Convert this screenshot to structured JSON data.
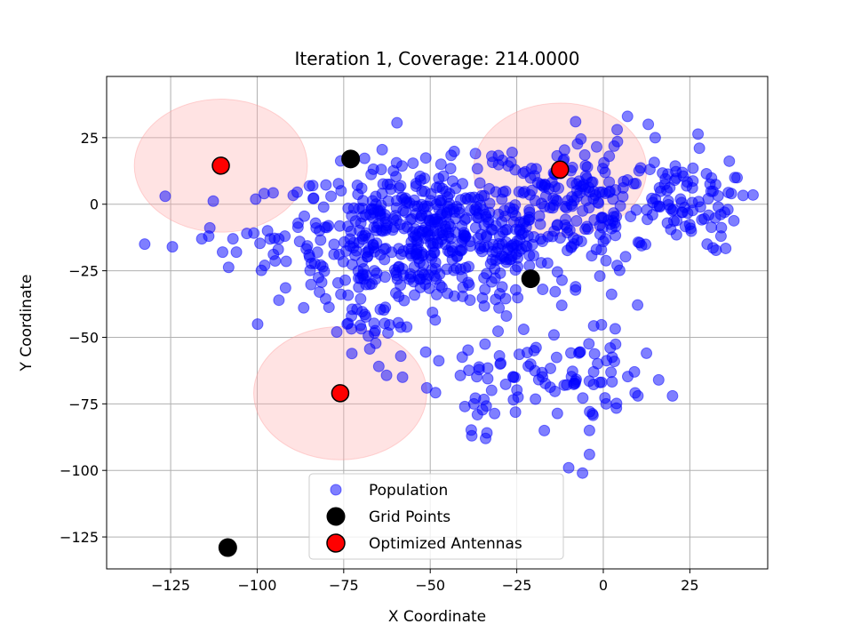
{
  "chart_data": {
    "type": "scatter",
    "title": "Iteration 1, Coverage: 214.0000",
    "xlabel": "X Coordinate",
    "ylabel": "Y Coordinate",
    "xlim": [
      -143.5,
      47.5
    ],
    "ylim": [
      -137,
      48
    ],
    "xticks": [
      -125,
      -100,
      -75,
      -50,
      -25,
      0,
      25
    ],
    "yticks": [
      25,
      0,
      -25,
      -50,
      -75,
      -100,
      -125
    ],
    "xtick_labels": [
      "−125",
      "−100",
      "−75",
      "−50",
      "−25",
      "0",
      "25"
    ],
    "ytick_labels": [
      "25",
      "0",
      "−25",
      "−50",
      "−75",
      "−100",
      "−125"
    ],
    "grid": true,
    "legend_position": "lower center",
    "coverage_radius": 25,
    "series": [
      {
        "name": "Population",
        "color": "#0000ff",
        "alpha": 0.5,
        "clusters": [
          {
            "cx": -50,
            "cy": -12,
            "sx": 22,
            "sy": 13,
            "n": 560
          },
          {
            "cx": -5,
            "cy": 2,
            "sx": 16,
            "sy": 12,
            "n": 170
          },
          {
            "cx": 22,
            "cy": 0,
            "sx": 9,
            "sy": 9,
            "n": 60
          },
          {
            "cx": -12,
            "cy": -65,
            "sx": 11,
            "sy": 9,
            "n": 70
          },
          {
            "cx": -35,
            "cy": -72,
            "sx": 6,
            "sy": 9,
            "n": 20
          },
          {
            "cx": -65,
            "cy": -48,
            "sx": 6,
            "sy": 8,
            "n": 25
          }
        ],
        "extra_points": [
          {
            "x": -132.5,
            "y": -15
          },
          {
            "x": -124.5,
            "y": -16
          },
          {
            "x": -116,
            "y": -13
          },
          {
            "x": -114,
            "y": -12
          },
          {
            "x": -110,
            "y": -18
          },
          {
            "x": -107,
            "y": -13
          },
          {
            "x": -106,
            "y": -18
          },
          {
            "x": -103,
            "y": -11
          },
          {
            "x": -98,
            "y": 4
          },
          {
            "x": -97,
            "y": -10
          },
          {
            "x": -92,
            "y": -12
          },
          {
            "x": -85,
            "y": -19
          },
          {
            "x": -82,
            "y": -33
          },
          {
            "x": -82,
            "y": -10
          },
          {
            "x": -77,
            "y": -48
          },
          {
            "x": -74,
            "y": -45
          },
          {
            "x": -58,
            "y": -65
          },
          {
            "x": -51,
            "y": -69
          },
          {
            "x": -38,
            "y": -87
          },
          {
            "x": -34,
            "y": -88
          },
          {
            "x": -40,
            "y": -76
          },
          {
            "x": -10,
            "y": -99
          },
          {
            "x": -6,
            "y": -101
          },
          {
            "x": -4,
            "y": -85
          },
          {
            "x": -4,
            "y": -94
          },
          {
            "x": 2,
            "y": -54
          },
          {
            "x": 9,
            "y": -63
          },
          {
            "x": 10,
            "y": -72
          },
          {
            "x": 16,
            "y": -66
          },
          {
            "x": 20,
            "y": -72
          },
          {
            "x": 34,
            "y": -12
          },
          {
            "x": 36,
            "y": -2
          },
          {
            "x": 38,
            "y": 10
          },
          {
            "x": 37,
            "y": 4
          },
          {
            "x": 30,
            "y": -15
          },
          {
            "x": 7,
            "y": 33
          },
          {
            "x": 13,
            "y": 30
          },
          {
            "x": 15,
            "y": 25
          },
          {
            "x": -8,
            "y": 31
          },
          {
            "x": 4,
            "y": 28
          },
          {
            "x": -2,
            "y": -17
          },
          {
            "x": 0,
            "y": -14
          },
          {
            "x": 4,
            "y": -23
          },
          {
            "x": -1,
            "y": -27
          },
          {
            "x": -8,
            "y": -31
          },
          {
            "x": -12,
            "y": -38
          },
          {
            "x": -28,
            "y": -42
          },
          {
            "x": -23,
            "y": -47
          },
          {
            "x": -20,
            "y": -55
          },
          {
            "x": -26,
            "y": -65
          },
          {
            "x": -30,
            "y": -57
          }
        ]
      },
      {
        "name": "Grid Points",
        "color": "#000000",
        "points": [
          {
            "x": -73,
            "y": 17
          },
          {
            "x": -21,
            "y": -28
          },
          {
            "x": -108.5,
            "y": -129
          }
        ]
      },
      {
        "name": "Optimized Antennas",
        "color": "#ff0000",
        "points": [
          {
            "x": -110.5,
            "y": 14.5
          },
          {
            "x": -12.5,
            "y": 13
          },
          {
            "x": -76,
            "y": -71
          }
        ]
      }
    ]
  },
  "colors": {
    "population": "#0000ff",
    "grid_points": "#000000",
    "antennas": "#ff0000",
    "coverage_fill": "#ffb0b0",
    "gridline": "#b0b0b0"
  }
}
